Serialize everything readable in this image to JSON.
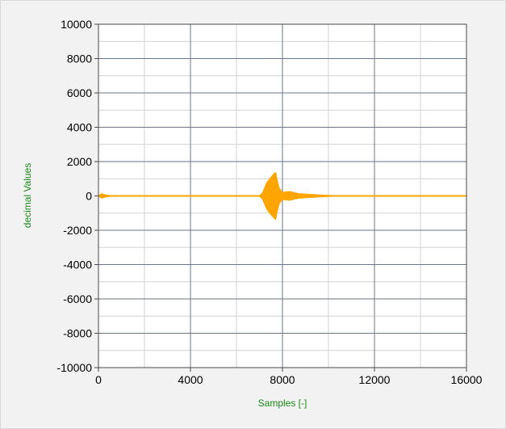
{
  "chart_data": {
    "type": "line",
    "title": "",
    "xlabel": "Samples [-]",
    "ylabel": "decimal Values",
    "xlim": [
      0,
      16000
    ],
    "ylim": [
      -10000,
      10000
    ],
    "x_major_ticks": [
      0,
      4000,
      8000,
      12000,
      16000
    ],
    "x_minor_step": 2000,
    "y_ticks": [
      -10000,
      -8000,
      -6000,
      -4000,
      -2000,
      0,
      2000,
      4000,
      6000,
      8000,
      10000
    ],
    "y_minor_step": 1000,
    "grid": true,
    "legend": "none",
    "series_color": "#ffa500",
    "series": [
      {
        "values": [
          [
            0,
            0
          ],
          [
            150,
            120
          ],
          [
            300,
            50
          ],
          [
            500,
            20
          ],
          [
            700,
            0
          ],
          [
            7000,
            0
          ],
          [
            7150,
            200
          ],
          [
            7300,
            700
          ],
          [
            7450,
            1000
          ],
          [
            7550,
            1150
          ],
          [
            7650,
            1300
          ],
          [
            7700,
            1350
          ],
          [
            7750,
            1000
          ],
          [
            7850,
            450
          ],
          [
            8000,
            200
          ],
          [
            8300,
            250
          ],
          [
            8700,
            120
          ],
          [
            9200,
            80
          ],
          [
            9800,
            40
          ],
          [
            10400,
            0
          ],
          [
            16000,
            0
          ]
        ]
      }
    ]
  }
}
